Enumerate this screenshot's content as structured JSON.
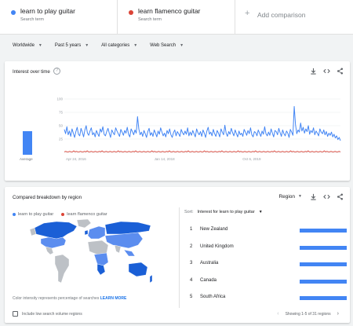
{
  "compare": {
    "terms": [
      {
        "name": "learn to play guitar",
        "sub": "Search term",
        "color": "#4285f4"
      },
      {
        "name": "learn flamenco guitar",
        "sub": "Search term",
        "color": "#db4437"
      }
    ],
    "add_label": "Add comparison"
  },
  "filters": {
    "location": "Worldwide",
    "time": "Past 5 years",
    "category": "All categories",
    "property": "Web Search"
  },
  "interest": {
    "title": "Interest over time",
    "average_label": "Average",
    "average_value": 38
  },
  "chart_data": {
    "type": "line",
    "title": "",
    "xlabel": "",
    "ylabel": "",
    "ylim": [
      0,
      100
    ],
    "yticks": [
      "100",
      "75",
      "50",
      "25"
    ],
    "xticks": [
      "Apr 24, 2016",
      "Jan 14, 2018",
      "Oct 6, 2019"
    ],
    "xtick_positions": [
      0,
      0.32,
      0.64
    ],
    "series": [
      {
        "name": "learn to play guitar",
        "color": "#4285f4",
        "values": [
          43,
          35,
          48,
          33,
          40,
          30,
          44,
          36,
          28,
          39,
          47,
          34,
          31,
          45,
          38,
          29,
          42,
          50,
          36,
          32,
          40,
          46,
          33,
          37,
          29,
          41,
          35,
          30,
          44,
          38,
          48,
          34,
          31,
          39,
          45,
          36,
          28,
          42,
          37,
          33,
          46,
          40,
          35,
          30,
          43,
          38,
          32,
          41,
          36,
          47,
          34,
          29,
          44,
          39,
          33,
          42,
          36,
          67,
          44,
          33,
          38,
          30,
          41,
          35,
          28,
          39,
          45,
          32,
          37,
          30,
          42,
          36,
          29,
          40,
          34,
          46,
          38,
          31,
          36,
          29,
          41,
          35,
          44,
          33,
          28,
          37,
          42,
          31,
          39,
          35,
          30,
          43,
          37,
          33,
          40,
          34,
          46,
          31,
          38,
          32,
          41,
          35,
          29,
          44,
          37,
          33,
          39,
          30,
          42,
          36,
          28,
          40,
          47,
          34,
          38,
          31,
          43,
          35,
          30,
          41,
          36,
          29,
          44,
          38,
          33,
          51,
          36,
          30,
          39,
          34,
          45,
          37,
          31,
          42,
          35,
          29,
          40,
          33,
          36,
          30,
          43,
          38,
          32,
          41,
          35,
          46,
          33,
          29,
          39,
          37,
          31,
          42,
          36,
          30,
          40,
          34,
          48,
          35,
          31,
          38,
          32,
          44,
          36,
          29,
          41,
          39,
          33,
          45,
          37,
          30,
          42,
          35,
          31,
          40,
          36,
          28,
          43,
          38,
          32,
          86,
          52,
          35,
          42,
          38,
          55,
          40,
          47,
          36,
          44,
          39,
          50,
          34,
          41,
          37,
          46,
          33,
          40,
          36,
          31,
          44,
          38,
          35,
          42,
          33,
          39,
          30,
          36,
          32,
          38,
          29,
          34,
          27,
          31,
          24,
          28,
          22
        ]
      },
      {
        "name": "learn flamenco guitar",
        "color": "#db4437",
        "values": [
          1,
          2,
          1,
          1,
          2,
          1,
          1,
          3,
          1,
          2,
          1,
          1,
          2,
          1,
          1,
          2,
          1,
          3,
          1,
          1,
          2,
          1,
          1,
          2,
          1,
          1,
          2,
          1,
          3,
          1,
          1,
          2,
          1,
          1,
          2,
          1,
          1,
          2,
          1,
          1,
          3,
          1,
          2,
          1,
          1,
          2,
          1,
          1,
          2,
          1,
          1,
          2,
          1,
          3,
          1,
          1,
          2,
          1,
          1,
          2,
          1,
          1,
          2,
          1,
          1,
          3,
          1,
          2,
          1,
          1,
          2,
          1,
          1,
          2,
          1,
          1,
          2,
          1,
          3,
          1,
          1,
          2,
          1,
          1,
          2,
          1,
          1,
          2,
          1,
          1,
          2,
          1,
          3,
          1,
          1,
          2,
          1,
          1,
          2,
          1,
          1,
          2,
          1,
          1,
          3,
          1,
          2,
          1,
          1,
          2,
          1,
          1,
          2,
          1,
          1,
          2,
          1,
          3,
          1,
          1,
          2,
          1,
          1,
          2,
          1,
          1,
          2,
          1,
          1,
          3,
          1,
          2,
          1,
          1,
          2,
          1,
          1,
          2,
          1,
          1,
          2,
          1,
          3,
          1,
          1,
          2,
          1,
          1,
          2,
          1,
          1,
          2,
          1,
          1,
          2,
          1,
          3,
          1,
          1,
          2,
          1,
          1,
          2,
          1,
          1,
          2,
          1,
          1,
          3,
          1,
          2,
          1,
          1,
          2,
          1,
          1,
          2,
          1,
          1,
          2,
          1,
          3,
          1,
          1,
          2,
          1,
          1,
          2,
          1,
          1,
          2,
          1,
          1,
          3,
          1,
          2,
          1,
          1,
          2,
          1,
          1,
          2,
          1,
          1,
          2,
          1
        ]
      }
    ]
  },
  "region": {
    "title": "Compared breakdown by region",
    "select_label": "Region",
    "legend": [
      {
        "name": "learn to play guitar",
        "color": "#4285f4"
      },
      {
        "name": "learn flamenco guitar",
        "color": "#db4437"
      }
    ],
    "map_note": "Color intensity represents percentage of searches",
    "learn_more": "LEARN MORE",
    "checkbox_label": "Include low search volume regions",
    "sort_label": "Sort:",
    "sort_value": "Interest for learn to play guitar",
    "rows": [
      {
        "rank": "1",
        "name": "New Zealand",
        "value": 100
      },
      {
        "rank": "2",
        "name": "United Kingdom",
        "value": 100
      },
      {
        "rank": "3",
        "name": "Australia",
        "value": 100
      },
      {
        "rank": "4",
        "name": "Canada",
        "value": 100
      },
      {
        "rank": "5",
        "name": "South Africa",
        "value": 100
      }
    ],
    "pager_text": "Showing 1-5 of 31 regions"
  }
}
